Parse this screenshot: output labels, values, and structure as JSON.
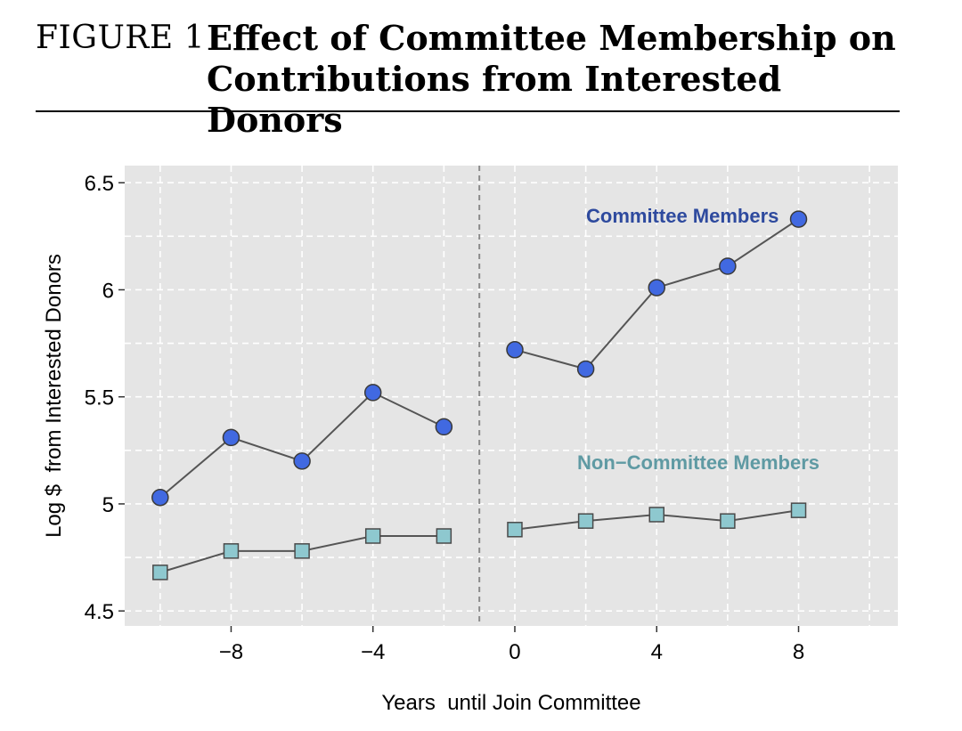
{
  "figure": {
    "label": "FIGURE 1",
    "title_line1": "Effect of Committee Membership on",
    "title_line2": "Contributions from Interested Donors"
  },
  "chart_data": {
    "type": "line",
    "xlabel": "Years  until Join Committee",
    "ylabel": "Log $  from Interested Donors",
    "xlim": [
      -11,
      10.8
    ],
    "ylim": [
      4.43,
      6.58
    ],
    "x_ticks": [
      -8,
      -4,
      0,
      4,
      8
    ],
    "x_tick_labels": [
      "−8",
      "−4",
      "0",
      "4",
      "8"
    ],
    "y_ticks": [
      4.5,
      5,
      5.5,
      6,
      6.5
    ],
    "y_tick_labels": [
      "4.5",
      "5",
      "5.5",
      "6",
      "6.5"
    ],
    "x_minor_gridlines": [
      -10,
      -6,
      -2,
      2,
      6,
      10
    ],
    "y_minor_gridlines": [
      4.75,
      5.25,
      5.75,
      6.25
    ],
    "grid": true,
    "background": "#e5e5e5",
    "vline": {
      "x": -1,
      "style": "dashed"
    },
    "series": [
      {
        "name": "Committee Members",
        "color": "#4169e1",
        "label_color": "#2e4a9e",
        "marker": "circle",
        "segments": [
          {
            "x": [
              -10,
              -8,
              -6,
              -4,
              -2
            ],
            "y": [
              5.03,
              5.31,
              5.2,
              5.52,
              5.36
            ]
          },
          {
            "x": [
              0,
              2,
              4,
              6,
              8
            ],
            "y": [
              5.72,
              5.63,
              6.01,
              6.11,
              6.33
            ]
          }
        ]
      },
      {
        "name": "Non−Committee Members",
        "color": "#8ec8cf",
        "label_color": "#5f9aa3",
        "marker": "square",
        "segments": [
          {
            "x": [
              -10,
              -8,
              -6,
              -4,
              -2
            ],
            "y": [
              4.68,
              4.78,
              4.78,
              4.85,
              4.85
            ]
          },
          {
            "x": [
              0,
              2,
              4,
              6,
              8
            ],
            "y": [
              4.88,
              4.92,
              4.95,
              4.92,
              4.97
            ]
          }
        ]
      }
    ]
  }
}
